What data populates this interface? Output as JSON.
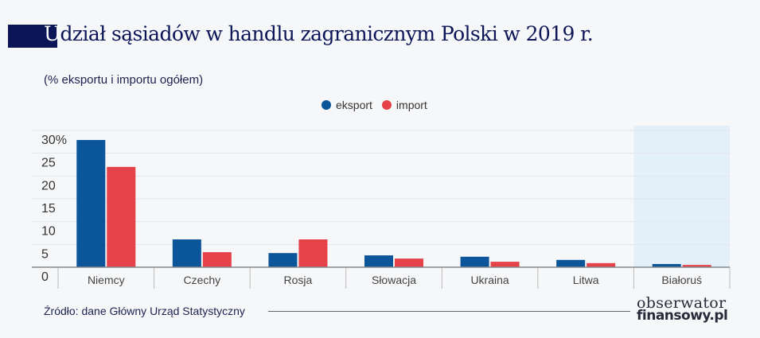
{
  "title_first_letter": "U",
  "title_rest": "dział sąsiadów w handlu zagranicznym Polski w 2019 r.",
  "subtitle": "(% eksportu i importu ogółem)",
  "source": "Źródło: dane Główny Urząd Statystyczny",
  "logo": {
    "line1": "obserwator",
    "line2": "finansowy.pl"
  },
  "colors": {
    "eksport": "#0b559b",
    "import": "#e5424a",
    "highlight": "#e4f0f9",
    "title": "#0b1557"
  },
  "chart_data": {
    "type": "bar",
    "title": "Udział sąsiadów w handlu zagranicznym Polski w 2019 r.",
    "ylabel": "(% eksportu i importu ogółem)",
    "ylim": [
      0,
      30
    ],
    "yticks": [
      "0",
      "5",
      "10",
      "15",
      "20",
      "25",
      "30%"
    ],
    "ytick_values": [
      0,
      5,
      10,
      15,
      20,
      25,
      30
    ],
    "grid": true,
    "legend_placement": "top-center",
    "categories": [
      "Niemcy",
      "Czechy",
      "Rosja",
      "Słowacja",
      "Ukraina",
      "Litwa",
      "Białoruś"
    ],
    "highlighted_category": "Białoruś",
    "series": [
      {
        "name": "eksport",
        "values": [
          27.9,
          6.1,
          3.1,
          2.6,
          2.3,
          1.6,
          0.7
        ]
      },
      {
        "name": "import",
        "values": [
          22.0,
          3.3,
          6.1,
          1.9,
          1.2,
          0.9,
          0.5
        ]
      }
    ]
  }
}
